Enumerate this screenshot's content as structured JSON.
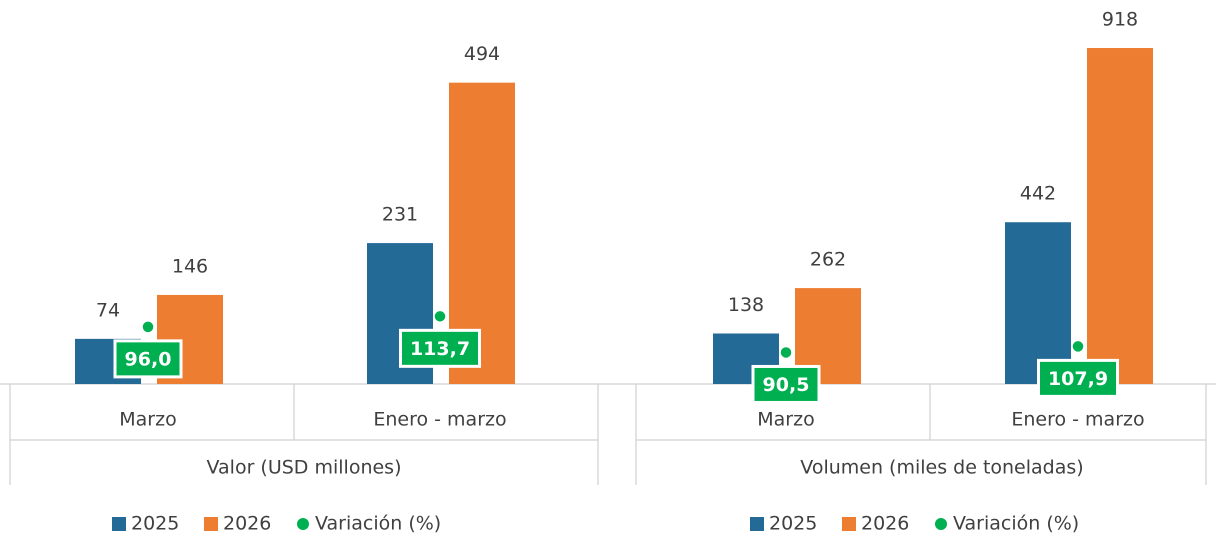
{
  "chart_data": [
    {
      "type": "bar",
      "xlabel": "Valor (USD millones)",
      "categories": [
        "Marzo",
        "Enero - marzo"
      ],
      "series": [
        {
          "name": "2025",
          "color": "#236b96",
          "values": [
            74,
            231
          ]
        },
        {
          "name": "2026",
          "color": "#ed7d31",
          "values": [
            146,
            494
          ]
        },
        {
          "name": "Variación (%)",
          "type": "scatter",
          "axis": "y2",
          "color": "#00b050",
          "values": [
            96.0,
            113.7
          ],
          "value_labels": [
            "96,0",
            "113,7"
          ]
        }
      ],
      "ylim": [
        0,
        600
      ],
      "y2lim": [
        0,
        615
      ],
      "legend": "bottom"
    },
    {
      "type": "bar",
      "xlabel": "Volumen (miles de toneladas)",
      "categories": [
        "Marzo",
        "Enero - marzo"
      ],
      "series": [
        {
          "name": "2025",
          "color": "#236b96",
          "values": [
            138,
            442
          ]
        },
        {
          "name": "2026",
          "color": "#ed7d31",
          "values": [
            262,
            918
          ]
        },
        {
          "name": "Variación (%)",
          "type": "scatter",
          "axis": "y2",
          "color": "#00b050",
          "values": [
            90.5,
            107.9
          ],
          "value_labels": [
            "90,5",
            "107,9"
          ]
        }
      ],
      "ylim": [
        0,
        1000
      ],
      "y2lim": [
        0,
        1050
      ],
      "legend": "bottom"
    }
  ]
}
